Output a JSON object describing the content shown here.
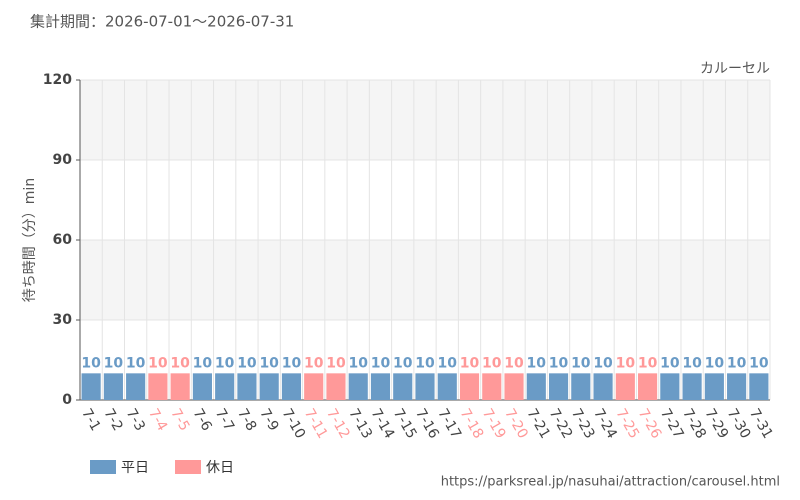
{
  "chart_data": {
    "type": "bar",
    "title": "集計期間：2026-07-01～2026-07-31",
    "subtitle": "カルーセル",
    "y_label": "待ち時間（分）min",
    "source": "https://parksreal.jp/nasuhai/attraction/carousel.html",
    "categories": [
      "7-1",
      "7-2",
      "7-3",
      "7-4",
      "7-5",
      "7-6",
      "7-7",
      "7-8",
      "7-9",
      "7-10",
      "7-11",
      "7-12",
      "7-13",
      "7-14",
      "7-15",
      "7-16",
      "7-17",
      "7-18",
      "7-19",
      "7-20",
      "7-21",
      "7-22",
      "7-23",
      "7-24",
      "7-25",
      "7-26",
      "7-27",
      "7-28",
      "7-29",
      "7-30",
      "7-31"
    ],
    "series": [
      {
        "name": "平日",
        "color": "#6a9bc6",
        "values": [
          10,
          10,
          10,
          null,
          null,
          10,
          10,
          10,
          10,
          10,
          null,
          null,
          10,
          10,
          10,
          10,
          10,
          null,
          null,
          null,
          10,
          10,
          10,
          10,
          null,
          null,
          10,
          10,
          10,
          10,
          10
        ]
      },
      {
        "name": "休日",
        "color": "#ff9999",
        "values": [
          null,
          null,
          null,
          10,
          10,
          null,
          null,
          null,
          null,
          null,
          10,
          10,
          null,
          null,
          null,
          null,
          null,
          10,
          10,
          10,
          null,
          null,
          null,
          null,
          10,
          10,
          null,
          null,
          null,
          null,
          null
        ]
      }
    ],
    "ylim": [
      0,
      120
    ],
    "yticks": [
      0,
      30,
      60,
      90,
      120
    ],
    "grid": true,
    "legend": "bottom-left"
  }
}
